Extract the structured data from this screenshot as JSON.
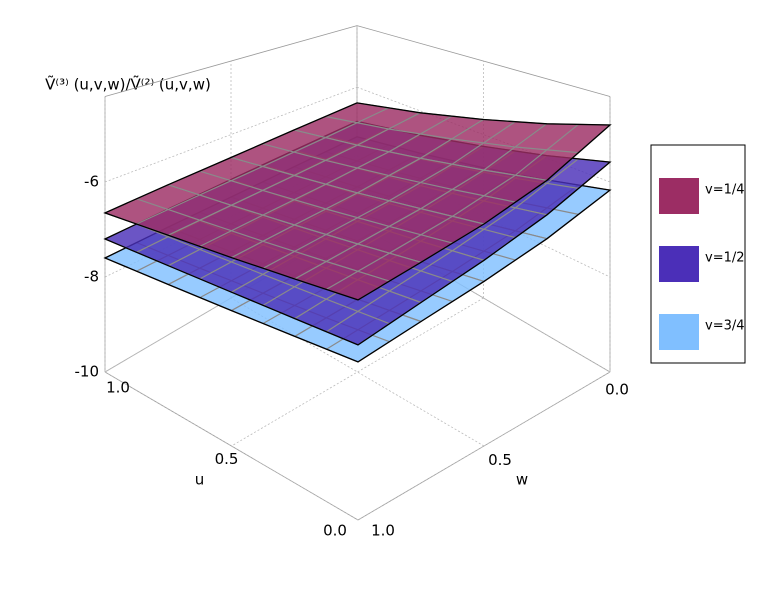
{
  "chart_data": {
    "type": "surface3d",
    "zlabel": "Ṽ⁽³⁾ (u,v,w)/Ṽ⁽²⁾ (u,v,w)",
    "xlabel": "u",
    "ylabel": "w",
    "u": [
      0,
      0.25,
      0.5,
      0.75,
      1
    ],
    "w": [
      0,
      0.25,
      0.5,
      0.75,
      1
    ],
    "xlim": [
      0,
      1
    ],
    "ylim": [
      0,
      1
    ],
    "zlim": [
      -10,
      -4.2
    ],
    "xticks": [
      {
        "value": 0,
        "label": "0.0"
      },
      0.5,
      {
        "value": 1,
        "label": "1.0"
      }
    ],
    "yticks": [
      {
        "value": 0,
        "label": "0.0"
      },
      0.5,
      {
        "value": 1,
        "label": "1.0"
      }
    ],
    "zticks": [
      -10,
      -8,
      -6
    ],
    "grid": true,
    "legend": "right",
    "series": [
      {
        "name": "v=1/4",
        "color": "#9c2d64",
        "z": [
          [
            -4.8,
            -5.5,
            -5.9,
            -6.16,
            -6.38
          ],
          [
            -5.22,
            -5.75,
            -6.06,
            -6.27,
            -6.45
          ],
          [
            -5.63,
            -6.0,
            -6.23,
            -6.38,
            -6.52
          ],
          [
            -6.05,
            -6.26,
            -6.39,
            -6.49,
            -6.58
          ],
          [
            -6.46,
            -6.51,
            -6.56,
            -6.6,
            -6.65
          ]
        ]
      },
      {
        "name": "v=1/2",
        "color": "#4b2fb8",
        "z": [
          [
            -5.58,
            -6.18,
            -6.57,
            -6.86,
            -7.12
          ],
          [
            -5.94,
            -6.4,
            -6.7,
            -6.93,
            -7.14
          ],
          [
            -6.29,
            -6.62,
            -6.83,
            -7.0,
            -7.16
          ],
          [
            -6.65,
            -6.83,
            -6.97,
            -7.08,
            -7.18
          ],
          [
            -7.0,
            -7.05,
            -7.1,
            -7.15,
            -7.2
          ]
        ]
      },
      {
        "name": "v=3/4",
        "color": "#80bfff",
        "z": [
          [
            -6.17,
            -6.65,
            -6.96,
            -7.19,
            -7.4
          ],
          [
            -6.49,
            -6.86,
            -7.1,
            -7.29,
            -7.45
          ],
          [
            -6.81,
            -7.07,
            -7.24,
            -7.38,
            -7.5
          ],
          [
            -7.13,
            -7.28,
            -7.38,
            -7.47,
            -7.55
          ],
          [
            -7.45,
            -7.49,
            -7.53,
            -7.56,
            -7.6
          ]
        ]
      }
    ]
  }
}
